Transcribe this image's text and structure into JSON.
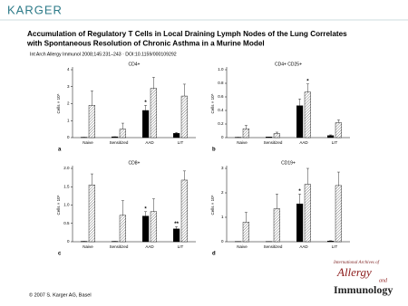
{
  "header": {
    "brand": "KARGER",
    "title_lines": [
      "Accumulation of Regulatory T Cells in Local Draining Lymph Nodes of the Lung Correlates",
      "with Spontaneous Resolution of Chronic Asthma in a Murine Model"
    ],
    "citation": "Int Arch Allergy Immunol 2008;145:231–243 · DOI:10.1159/000109292"
  },
  "chart_data": [
    {
      "type": "bar",
      "title": "CD4+",
      "label": "a",
      "ylabel": "Cells × 10⁵",
      "categories": [
        "Naive",
        "Sensitized",
        "AAD",
        "LIT"
      ],
      "series": [
        {
          "color": "#000000",
          "values": [
            0.02,
            0.05,
            1.6,
            0.25
          ],
          "errors": [
            0,
            0,
            0.3,
            0.05
          ]
        },
        {
          "color": "#ffffff",
          "hatch": true,
          "values": [
            1.9,
            0.5,
            2.9,
            2.45
          ],
          "errors": [
            0.85,
            0.35,
            0.65,
            0.7
          ]
        }
      ],
      "annotations": [
        "*"
      ],
      "ylim": [
        0,
        4
      ],
      "yticks": [
        0,
        1,
        2,
        3,
        4
      ]
    },
    {
      "type": "bar",
      "title": "CD4+ CD25+",
      "label": "b",
      "ylabel": "Cells × 10⁵",
      "categories": [
        "Naive",
        "Sensitized",
        "AAD",
        "LIT"
      ],
      "series": [
        {
          "color": "#000000",
          "values": [
            0.005,
            0.01,
            0.47,
            0.03
          ],
          "errors": [
            0,
            0,
            0.1,
            0.01
          ]
        },
        {
          "color": "#ffffff",
          "hatch": true,
          "values": [
            0.13,
            0.06,
            0.67,
            0.22
          ],
          "errors": [
            0.05,
            0.02,
            0.12,
            0.04
          ]
        }
      ],
      "annotations": [
        "*"
      ],
      "ylim": [
        0,
        1
      ],
      "yticks": [
        0,
        0.2,
        0.4,
        0.6,
        0.8,
        {
          "value": 1,
          "label": "1.0"
        }
      ]
    },
    {
      "type": "bar",
      "title": "CD8+",
      "label": "c",
      "ylabel": "Cells × 10⁵",
      "categories": [
        "Naive",
        "Sensitized",
        "AAD",
        "LIT"
      ],
      "series": [
        {
          "color": "#000000",
          "values": [
            0.01,
            0.01,
            0.7,
            0.35
          ],
          "errors": [
            0,
            0,
            0.12,
            0.06
          ]
        },
        {
          "color": "#ffffff",
          "hatch": true,
          "values": [
            1.55,
            0.72,
            0.82,
            1.68
          ],
          "errors": [
            0.3,
            0.4,
            0.35,
            0.25
          ]
        }
      ],
      "annotations": [
        "*",
        "**"
      ],
      "ylim": [
        0,
        2
      ],
      "yticks": [
        0,
        0.5,
        {
          "value": 1,
          "label": "1.0"
        },
        1.5,
        {
          "value": 2,
          "label": "2.0"
        }
      ]
    },
    {
      "type": "bar",
      "title": "CD19+",
      "label": "d",
      "ylabel": "Cells × 10⁵",
      "categories": [
        "Naive",
        "Sensitized",
        "AAD",
        "LIT"
      ],
      "series": [
        {
          "color": "#000000",
          "values": [
            0.01,
            0.01,
            1.55,
            0.03
          ],
          "errors": [
            0,
            0,
            0.4,
            0.01
          ]
        },
        {
          "color": "#ffffff",
          "hatch": true,
          "values": [
            0.8,
            1.35,
            2.35,
            2.3
          ],
          "errors": [
            0.4,
            0.6,
            0.65,
            0.55
          ]
        }
      ],
      "annotations": [
        "*"
      ],
      "ylim": [
        0,
        3
      ],
      "yticks": [
        0,
        1,
        2,
        3
      ]
    }
  ],
  "footer": {
    "copyright": "© 2007 S. Karger AG, Basel",
    "journal": {
      "line1": "International Archives of",
      "line2": "Allergy",
      "line3": "and",
      "line4": "Immunology"
    }
  }
}
